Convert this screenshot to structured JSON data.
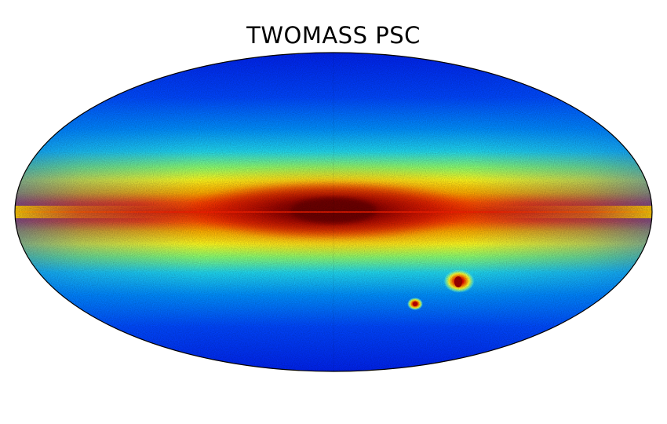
{
  "title": "TWOMASS PSC",
  "map": {
    "projection": "mollweide",
    "colormap": "jet",
    "colors": {
      "background": "#ffffff",
      "outline": "#000000",
      "low": "#0000ff",
      "mid": "#00ffff",
      "high": "#ffff00",
      "peak": "#800000"
    },
    "features": [
      "galactic-plane",
      "large-magellanic-cloud",
      "small-magellanic-cloud"
    ]
  }
}
